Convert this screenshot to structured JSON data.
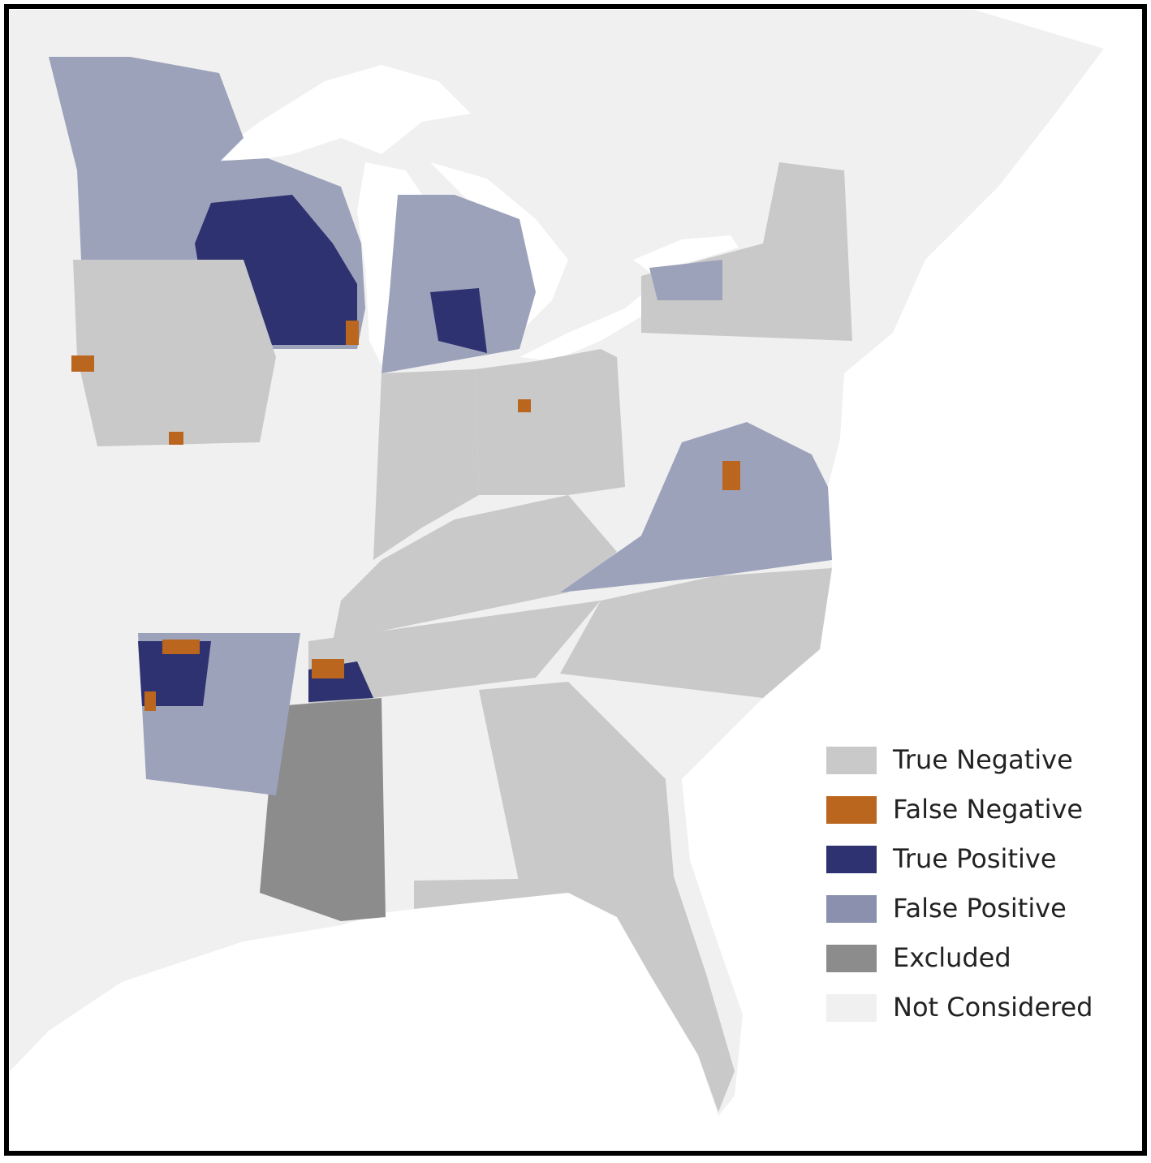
{
  "legend": {
    "items": [
      {
        "label": "True Negative",
        "color": "#c9c9c9"
      },
      {
        "label": "False Negative",
        "color": "#bb661f"
      },
      {
        "label": "True Positive",
        "color": "#2e3270"
      },
      {
        "label": "False Positive",
        "color": "#8a90ad"
      },
      {
        "label": "Excluded",
        "color": "#8c8c8c"
      },
      {
        "label": "Not Considered",
        "color": "#f0f0f0"
      }
    ]
  }
}
